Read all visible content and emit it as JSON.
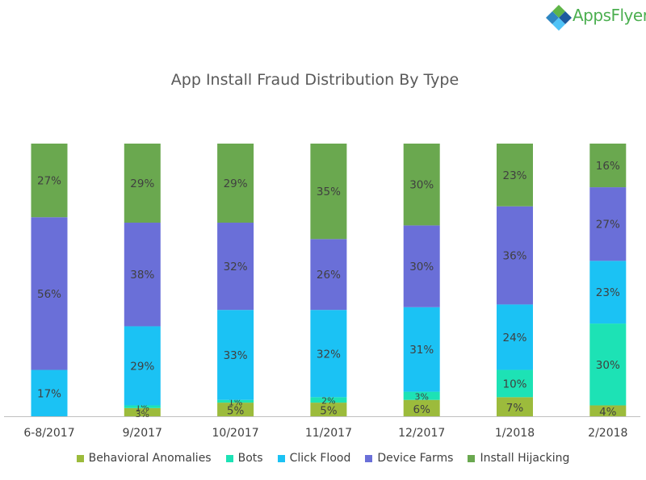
{
  "brand": {
    "logo_text": "AppsFlyer"
  },
  "chart_data": {
    "type": "bar",
    "stacked": true,
    "title": "App Install Fraud Distribution By Type",
    "categories": [
      "6-8/2017",
      "9/2017",
      "10/2017",
      "11/2017",
      "12/2017",
      "1/2018",
      "2/2018"
    ],
    "ylim": [
      0,
      100
    ],
    "grid": false,
    "legend_position": "bottom",
    "series": [
      {
        "name": "Behavioral Anomalies",
        "color": "#9cbb3c",
        "values": [
          0,
          3,
          5,
          5,
          6,
          7,
          4
        ],
        "labels": [
          "",
          "3%",
          "5%",
          "5%",
          "6%",
          "7%",
          "4%"
        ]
      },
      {
        "name": "Bots",
        "color": "#1de2b5",
        "values": [
          0,
          1,
          1,
          2,
          3,
          10,
          30
        ],
        "labels": [
          "",
          "1%",
          "1%",
          "2%",
          "3%",
          "10%",
          "30%"
        ]
      },
      {
        "name": "Click Flood",
        "color": "#1bc2f4",
        "values": [
          17,
          29,
          33,
          32,
          31,
          24,
          23
        ],
        "labels": [
          "17%",
          "29%",
          "33%",
          "32%",
          "31%",
          "24%",
          "23%"
        ]
      },
      {
        "name": "Device Farms",
        "color": "#6a6fd8",
        "values": [
          56,
          38,
          32,
          26,
          30,
          36,
          27
        ],
        "labels": [
          "56%",
          "38%",
          "32%",
          "26%",
          "30%",
          "36%",
          "27%"
        ]
      },
      {
        "name": "Install Hijacking",
        "color": "#6aa84f",
        "values": [
          27,
          29,
          29,
          35,
          30,
          23,
          16
        ],
        "labels": [
          "27%",
          "29%",
          "29%",
          "35%",
          "30%",
          "23%",
          "16%"
        ]
      }
    ]
  }
}
